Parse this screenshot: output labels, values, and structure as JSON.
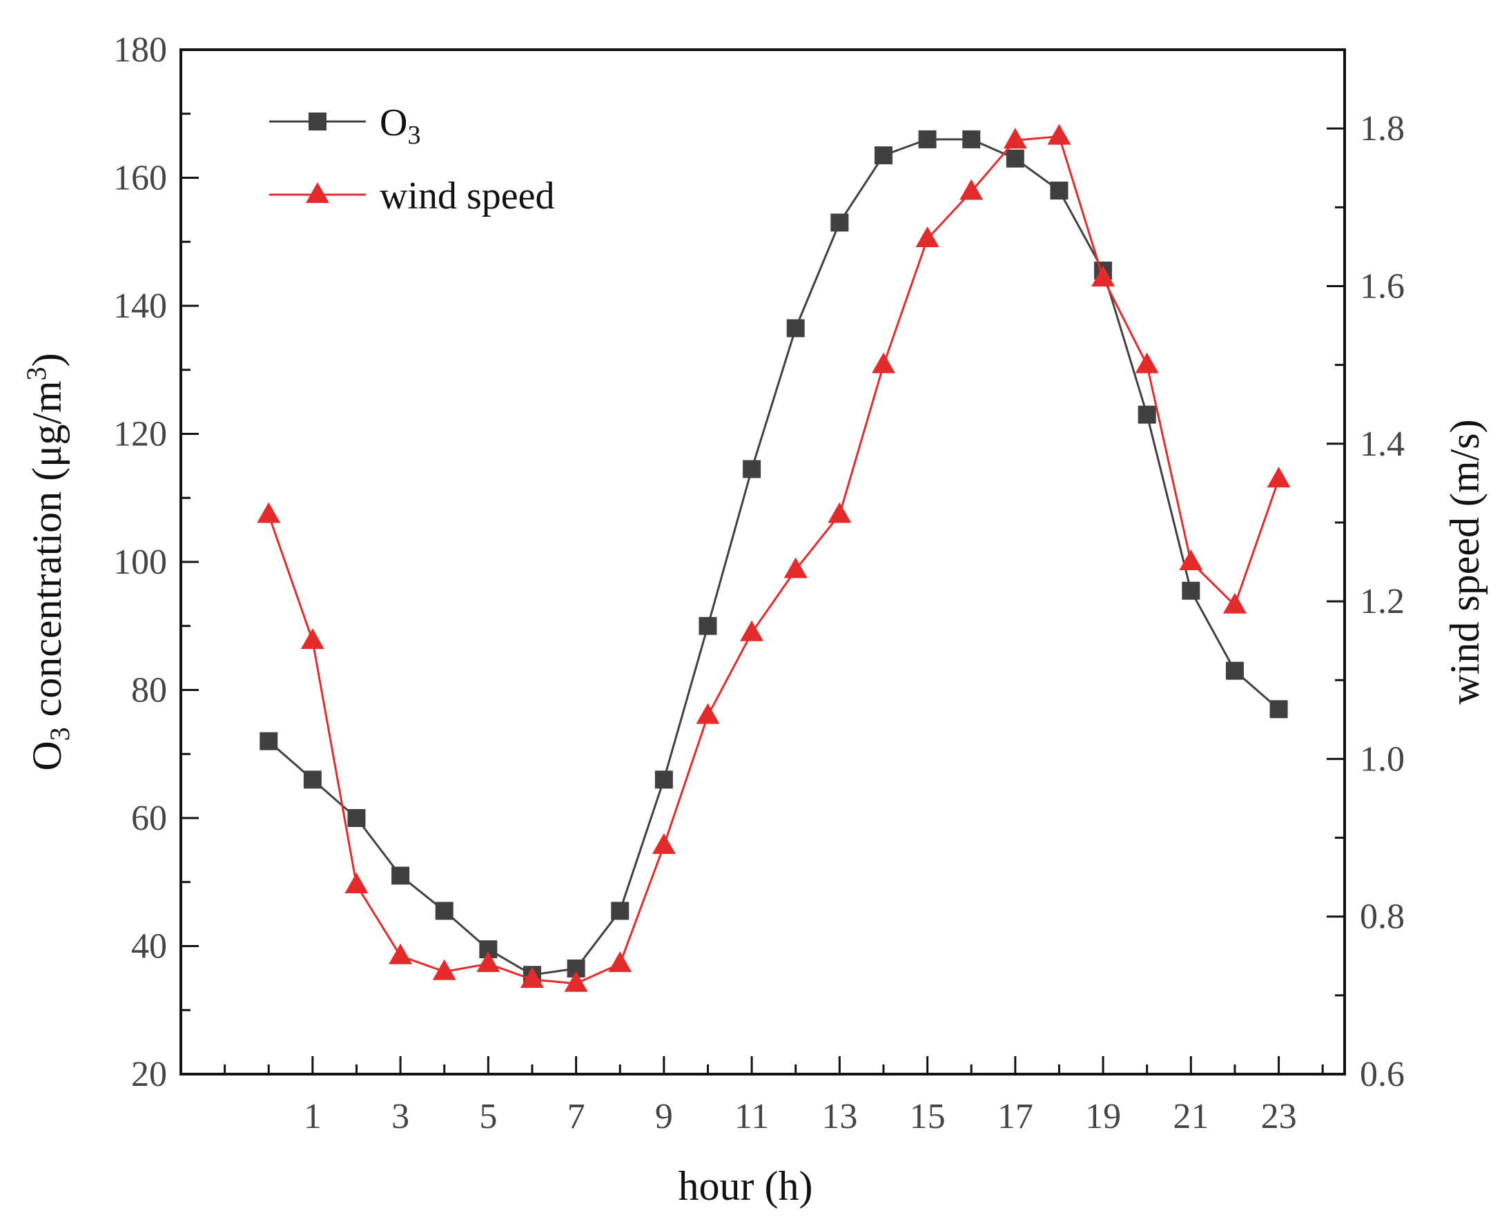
{
  "chart_data": {
    "type": "line",
    "title": "",
    "xlabel": "hour (h)",
    "ylabel": {
      "prefix": "O",
      "sub": "3",
      "mid": " concentration (μg/m",
      "sup": "3",
      "suffix": ")"
    },
    "y2label": "wind speed (m/s)",
    "x": [
      0,
      1,
      2,
      3,
      4,
      5,
      6,
      7,
      8,
      9,
      10,
      11,
      12,
      13,
      14,
      15,
      16,
      17,
      18,
      19,
      20,
      21,
      22,
      23
    ],
    "xlim": [
      -2,
      24.5
    ],
    "x_tick_labels": [
      "1",
      "3",
      "5",
      "7",
      "9",
      "11",
      "13",
      "15",
      "17",
      "19",
      "21",
      "23"
    ],
    "ylim": [
      20,
      180
    ],
    "y_tick_labels": [
      "20",
      "40",
      "60",
      "80",
      "100",
      "120",
      "140",
      "160",
      "180"
    ],
    "y2lim": [
      0.6,
      1.9
    ],
    "y2_tick_labels": [
      "0.6",
      "0.8",
      "1.0",
      "1.2",
      "1.4",
      "1.6",
      "1.8"
    ],
    "grid": false,
    "legend_position": "top-left",
    "series": [
      {
        "name": "O3",
        "legend": {
          "main": "O",
          "sub": "3"
        },
        "axis": "left",
        "marker": "square",
        "color": "#404040",
        "values": [
          72,
          66,
          60,
          51,
          45.5,
          39.5,
          35.5,
          36.5,
          45.5,
          66,
          90,
          114.5,
          136.5,
          153,
          163.5,
          166,
          166,
          163,
          158,
          145.5,
          123,
          95.5,
          83,
          77
        ]
      },
      {
        "name": "wind speed",
        "legend": {
          "main": "wind speed",
          "sub": ""
        },
        "axis": "right",
        "marker": "triangle",
        "color": "#e32b2b",
        "values": [
          1.31,
          1.15,
          0.84,
          0.75,
          0.73,
          0.74,
          0.72,
          0.715,
          0.74,
          0.89,
          1.055,
          1.16,
          1.24,
          1.31,
          1.5,
          1.66,
          1.72,
          1.785,
          1.79,
          1.61,
          1.5,
          1.25,
          1.195,
          1.355
        ]
      }
    ]
  }
}
